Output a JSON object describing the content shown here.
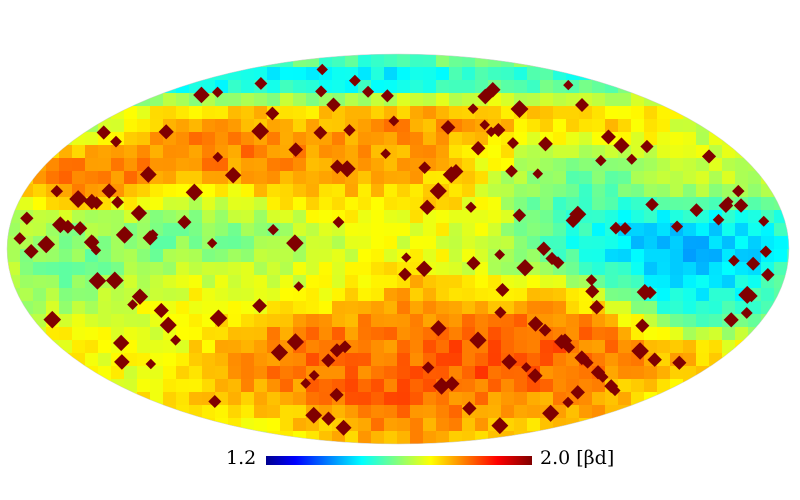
{
  "map": {
    "projection": "mollweide",
    "colormap": "jet",
    "colors": [
      "#00008f",
      "#0000ff",
      "#00ffff",
      "#ffff00",
      "#ff0000",
      "#800000"
    ],
    "masked_color": "#800000",
    "range": [
      1.2,
      2.0
    ]
  },
  "colorbar": {
    "min_label": "1.2",
    "max_label": "2.0",
    "unit_label": "[βd]"
  }
}
